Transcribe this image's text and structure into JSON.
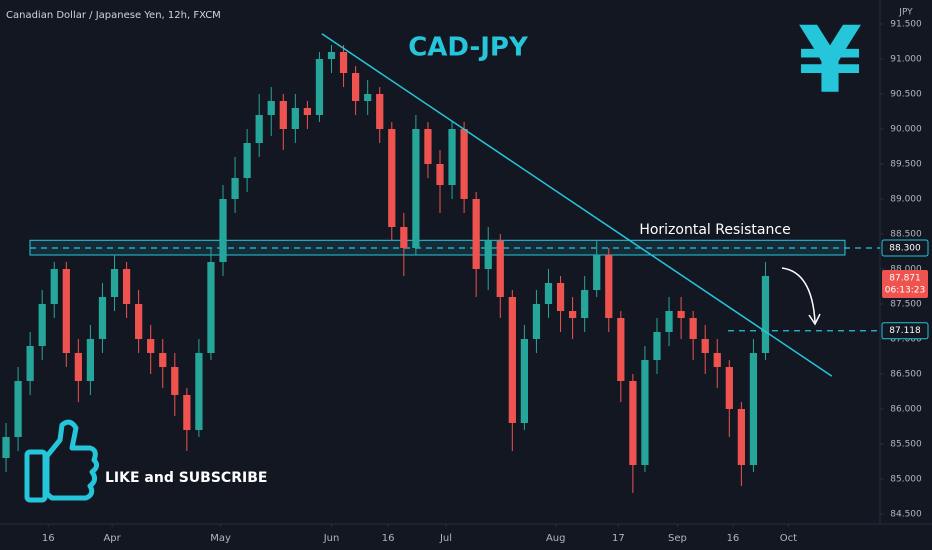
{
  "chart_data": {
    "type": "candlestick",
    "title": "CAD-JPY",
    "subtitle": "Canadian Dollar / Japanese Yen, 12h, FXCM",
    "y_axis_label": "JPY",
    "symbol": "¥",
    "up_color": "#26a69a",
    "down_color": "#ef5350",
    "line_color": "#26c6da",
    "open": [
      85.3,
      85.6,
      86.4,
      86.9,
      87.5,
      88.0,
      86.8,
      86.4,
      87.0,
      87.6,
      88.0,
      87.5,
      87.0,
      86.8,
      86.6,
      86.2,
      85.7,
      86.8,
      88.1,
      89.0,
      89.3,
      89.8,
      90.2,
      90.4,
      90.0,
      90.3,
      90.2,
      91.0,
      91.1,
      90.8,
      90.4,
      90.5,
      90.0,
      88.6,
      88.3,
      90.0,
      89.5,
      89.2,
      90.0,
      89.0,
      88.0,
      88.4,
      87.6,
      85.8,
      87.0,
      87.5,
      87.8,
      87.4,
      87.3,
      87.7,
      88.2,
      87.3,
      86.4,
      85.2,
      86.7,
      87.1,
      87.4,
      87.3,
      87.0,
      86.8,
      86.6,
      86.0,
      85.2,
      86.8
    ],
    "high": [
      85.8,
      86.6,
      87.1,
      87.7,
      88.1,
      88.1,
      87.0,
      87.2,
      87.8,
      88.2,
      88.1,
      87.7,
      87.2,
      87.0,
      86.8,
      86.3,
      87.0,
      88.3,
      89.2,
      89.6,
      90.0,
      90.5,
      90.6,
      90.5,
      90.5,
      90.4,
      91.1,
      91.2,
      91.2,
      90.9,
      90.7,
      90.6,
      90.1,
      88.8,
      90.2,
      90.1,
      89.7,
      90.1,
      90.1,
      89.1,
      88.6,
      88.5,
      87.7,
      87.2,
      87.7,
      88.0,
      87.9,
      87.6,
      87.9,
      88.4,
      88.3,
      87.4,
      86.5,
      86.9,
      87.3,
      87.6,
      87.6,
      87.4,
      87.2,
      87.0,
      86.7,
      86.1,
      87.0,
      88.1
    ],
    "low": [
      85.1,
      85.4,
      86.2,
      86.7,
      87.3,
      86.6,
      86.1,
      86.2,
      86.8,
      87.4,
      87.3,
      86.8,
      86.5,
      86.3,
      85.9,
      85.4,
      85.6,
      86.7,
      87.9,
      88.8,
      89.1,
      89.6,
      89.9,
      89.7,
      89.8,
      90.0,
      90.1,
      90.8,
      90.6,
      90.2,
      90.2,
      89.8,
      88.4,
      87.9,
      88.2,
      89.3,
      88.8,
      89.0,
      88.8,
      87.6,
      87.7,
      87.3,
      85.4,
      85.7,
      86.8,
      87.3,
      87.1,
      87.0,
      87.1,
      87.6,
      87.1,
      86.1,
      84.8,
      85.1,
      86.5,
      86.9,
      87.0,
      86.7,
      86.5,
      86.3,
      85.6,
      84.9,
      85.1,
      86.7
    ],
    "close": [
      85.6,
      86.4,
      86.9,
      87.5,
      88.0,
      86.8,
      86.4,
      87.0,
      87.6,
      88.0,
      87.5,
      87.0,
      86.8,
      86.6,
      86.2,
      85.7,
      86.8,
      88.1,
      89.0,
      89.3,
      89.8,
      90.2,
      90.4,
      90.0,
      90.3,
      90.2,
      91.0,
      91.1,
      90.8,
      90.4,
      90.5,
      90.0,
      88.6,
      88.3,
      90.0,
      89.5,
      89.2,
      90.0,
      89.0,
      88.0,
      88.4,
      87.6,
      85.8,
      87.0,
      87.5,
      87.8,
      87.4,
      87.3,
      87.7,
      88.2,
      87.3,
      86.4,
      85.2,
      86.7,
      87.1,
      87.4,
      87.3,
      87.0,
      86.8,
      86.6,
      86.0,
      85.2,
      86.8,
      87.9
    ],
    "xlim": [
      -0.5,
      72.5
    ],
    "xticks": [
      {
        "value": 3.5,
        "label": "16"
      },
      {
        "value": 8.8,
        "label": "Apr"
      },
      {
        "value": 17.8,
        "label": "May"
      },
      {
        "value": 27,
        "label": "Jun"
      },
      {
        "value": 31.7,
        "label": "16"
      },
      {
        "value": 36.5,
        "label": "Jul"
      },
      {
        "value": 45.6,
        "label": "Aug"
      },
      {
        "value": 50.8,
        "label": "17"
      },
      {
        "value": 55.7,
        "label": "Sep"
      },
      {
        "value": 60.3,
        "label": "16"
      },
      {
        "value": 64.9,
        "label": "Oct"
      }
    ],
    "ylim": [
      84.5,
      91.5
    ],
    "yticks": [
      {
        "value": 84.5,
        "label": "84.500"
      },
      {
        "value": 85,
        "label": "85.000"
      },
      {
        "value": 85.5,
        "label": "85.500"
      },
      {
        "value": 86,
        "label": "86.000"
      },
      {
        "value": 86.5,
        "label": "86.500"
      },
      {
        "value": 87,
        "label": "87.000"
      },
      {
        "value": 87.5,
        "label": "87.500"
      },
      {
        "value": 88,
        "label": "88.000"
      },
      {
        "value": 88.5,
        "label": "88.500"
      },
      {
        "value": 89,
        "label": "89.000"
      },
      {
        "value": 89.5,
        "label": "89.500"
      },
      {
        "value": 90,
        "label": "90.000"
      },
      {
        "value": 90.5,
        "label": "90.500"
      },
      {
        "value": 91,
        "label": "91.000"
      },
      {
        "value": 91.5,
        "label": "91.500"
      }
    ],
    "resistance_label": "Horizontal Resistance",
    "resistance": {
      "value": 88.3,
      "label": "88.300"
    },
    "resistance_zone": [
      88.2,
      88.41
    ],
    "support": 87.118,
    "last_price": 87.871,
    "countdown": "06:13:23",
    "trendline": {
      "x": [
        26.2,
        68.5
      ],
      "y": [
        91.36,
        86.47
      ]
    },
    "cta": "LIKE and SUBSCRIBE"
  }
}
